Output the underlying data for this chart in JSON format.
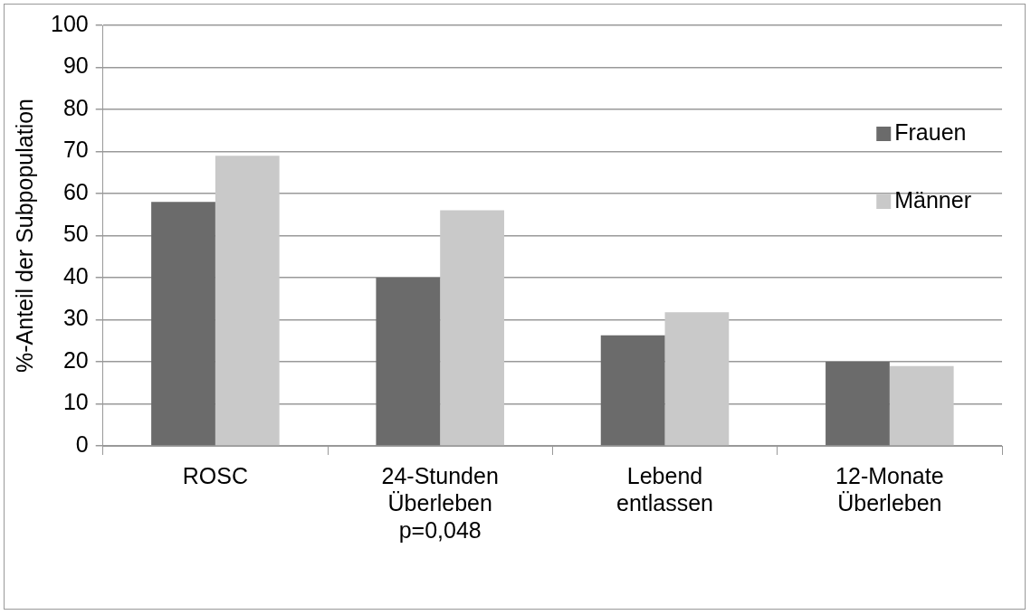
{
  "chart_data": {
    "type": "bar",
    "ylabel": "%-Anteil der Subpopulation",
    "categories": [
      "ROSC",
      "24-Stunden\nÜberleben\np=0,048",
      "Lebend\nentlassen",
      "12-Monate\nÜberleben"
    ],
    "series": [
      {
        "name": "Frauen",
        "color": "#6b6b6b",
        "values": [
          58,
          40,
          26.3,
          20
        ]
      },
      {
        "name": "Männer",
        "color": "#c9c9c9",
        "values": [
          69,
          56,
          31.8,
          19
        ]
      }
    ],
    "ylim": [
      0,
      100
    ],
    "yticks": [
      0,
      10,
      20,
      30,
      40,
      50,
      60,
      70,
      80,
      90,
      100
    ],
    "grid": "y",
    "legend": "top right"
  }
}
